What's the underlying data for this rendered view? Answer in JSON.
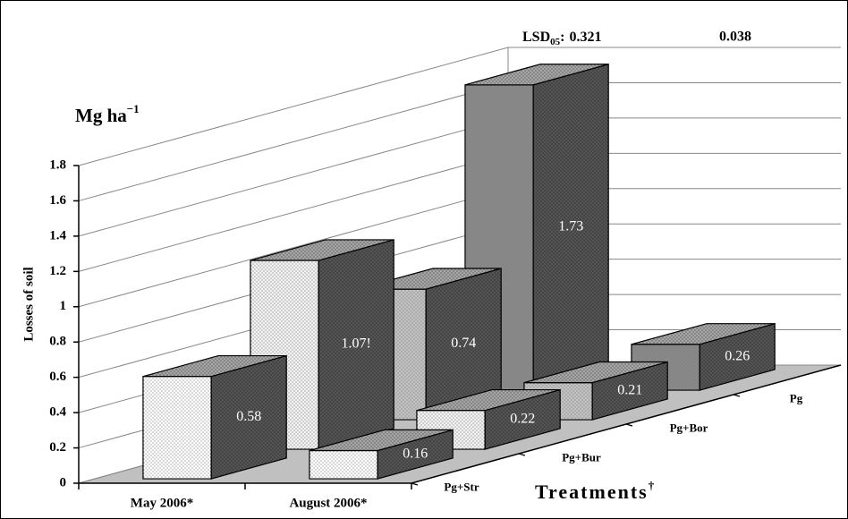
{
  "chart_data": {
    "type": "bar3d",
    "unit": "Mg ha",
    "unit_sup": "−1",
    "y_title": "Losses of soil",
    "x_title": "Treatments",
    "x_title_sup": "†",
    "lsd": {
      "label": "LSD",
      "subscript": "05",
      "separator": ":",
      "values": [
        0.321,
        0.038
      ]
    },
    "categories": [
      "May 2006*",
      "August 2006*"
    ],
    "series": [
      {
        "name": "Pg+Str",
        "color": "#ffffff",
        "values": [
          0.58,
          0.16
        ]
      },
      {
        "name": "Pg+Bur",
        "color": "#f2f2f2",
        "values": [
          1.07,
          0.22
        ],
        "value_labels": [
          "1.07!",
          "0.22"
        ]
      },
      {
        "name": "Pg+Bor",
        "color": "#c2c2c2",
        "values": [
          0.74,
          0.21
        ]
      },
      {
        "name": "Pg",
        "color": "#8a8a8a",
        "values": [
          1.73,
          0.26
        ]
      }
    ],
    "ylim": [
      0,
      1.8
    ],
    "yticks": [
      0,
      0.2,
      0.4,
      0.6,
      0.8,
      1,
      1.2,
      1.4,
      1.6,
      1.8
    ],
    "grid": true
  }
}
